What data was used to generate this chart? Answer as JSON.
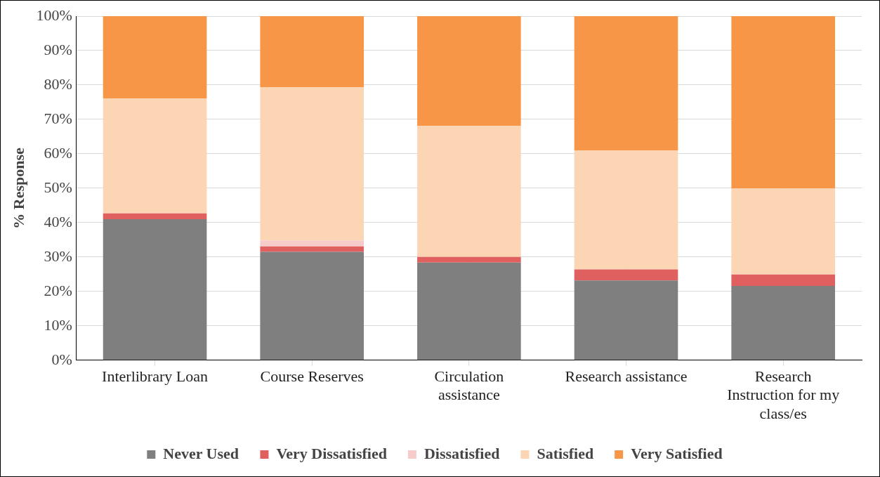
{
  "chart_data": {
    "type": "bar",
    "stacked": true,
    "ylabel": "% Response",
    "categories": [
      "Interlibrary Loan",
      "Course Reserves",
      "Circulation assistance",
      "Research assistance",
      "Research Instruction for my class/es"
    ],
    "series": [
      {
        "name": "Never Used",
        "color": "#7f7f7f",
        "values": [
          41.0,
          31.5,
          28.4,
          23.2,
          21.6
        ]
      },
      {
        "name": "Very Dissatisfied",
        "color": "#e06060",
        "values": [
          1.7,
          1.6,
          1.6,
          3.2,
          3.3
        ]
      },
      {
        "name": "Dissatisfied",
        "color": "#f8cbcb",
        "values": [
          0,
          1.7,
          0,
          0,
          0
        ]
      },
      {
        "name": "Satisfied",
        "color": "#fcd5b5",
        "values": [
          33.4,
          44.6,
          38.1,
          34.6,
          25.0
        ]
      },
      {
        "name": "Very Satisfied",
        "color": "#f79646",
        "values": [
          23.9,
          20.6,
          31.9,
          39.0,
          50.1
        ]
      }
    ],
    "ylim": [
      0,
      100
    ],
    "yticks": [
      {
        "value": 0,
        "label": "0%"
      },
      {
        "value": 10,
        "label": "10%"
      },
      {
        "value": 20,
        "label": "20%"
      },
      {
        "value": 30,
        "label": "30%"
      },
      {
        "value": 40,
        "label": "40%"
      },
      {
        "value": 50,
        "label": "50%"
      },
      {
        "value": 60,
        "label": "60%"
      },
      {
        "value": 70,
        "label": "70%"
      },
      {
        "value": 80,
        "label": "80%"
      },
      {
        "value": 90,
        "label": "90%"
      },
      {
        "value": 100,
        "label": "100%"
      }
    ],
    "grid": true,
    "legend": "bottom"
  }
}
